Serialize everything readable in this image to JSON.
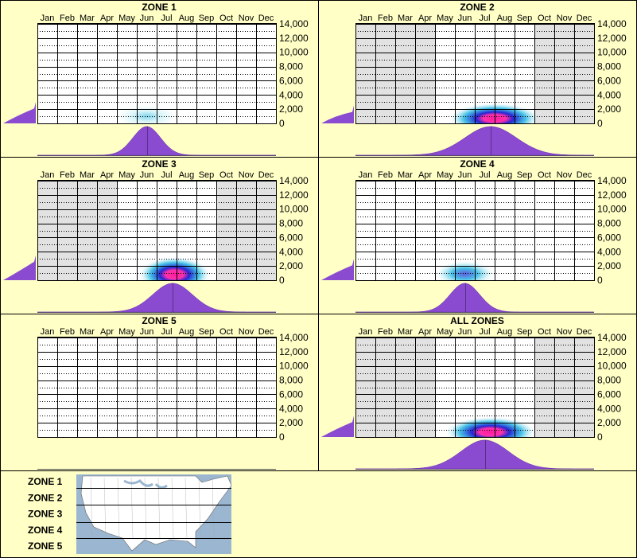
{
  "colors": {
    "background": "#ffffc6",
    "border": "#000000",
    "plot_bg": "#ffffff",
    "inactive_month": "#e2e2e2",
    "density_fill": "#8a4bd1",
    "heat_outer": "#bfeef5",
    "heat_mid": "#1ab4e0",
    "heat_inner": "#1a1ad0",
    "heat_core": "#ff1aa0"
  },
  "months": [
    "Jan",
    "Feb",
    "Mar",
    "Apr",
    "May",
    "Jun",
    "Jul",
    "Aug",
    "Sep",
    "Oct",
    "Nov",
    "Dec"
  ],
  "y_ticks": [
    "14,000",
    "12,000",
    "10,000",
    "8,000",
    "6,000",
    "4,000",
    "2,000",
    "0"
  ],
  "legend": {
    "zones": [
      "ZONE 1",
      "ZONE 2",
      "ZONE 3",
      "ZONE 4",
      "ZONE 5"
    ],
    "map_icon": "us-map-icon"
  },
  "chart_data": [
    {
      "type": "heatmap",
      "title": "ZONE 1",
      "x_categories_ref": "months",
      "ylim": [
        0,
        14000
      ],
      "active_months": [
        1,
        2,
        3,
        4,
        5,
        6,
        7,
        8,
        9,
        10,
        11,
        12
      ],
      "heat": {
        "center_month": 6.0,
        "center_elev": 1000,
        "spread_month": 0.9,
        "spread_elev": 900,
        "intensity": 0.25
      },
      "month_density": {
        "peak_month": 6.0,
        "width": 0.7,
        "height": 0.95
      },
      "elev_density": {
        "max": 0.45,
        "at_elev": 3000
      }
    },
    {
      "type": "heatmap",
      "title": "ZONE 2",
      "x_categories_ref": "months",
      "ylim": [
        0,
        14000
      ],
      "active_months": [
        5,
        6,
        7,
        8,
        9
      ],
      "heat": {
        "center_month": 7.5,
        "center_elev": 700,
        "spread_month": 1.4,
        "spread_elev": 1300,
        "intensity": 1.0
      },
      "month_density": {
        "peak_month": 7.3,
        "width": 1.3,
        "height": 0.95
      },
      "elev_density": {
        "max": 0.45,
        "at_elev": 2500
      }
    },
    {
      "type": "heatmap",
      "title": "ZONE 3",
      "x_categories_ref": "months",
      "ylim": [
        0,
        14000
      ],
      "active_months": [
        5,
        6,
        7,
        8,
        9
      ],
      "heat": {
        "center_month": 7.4,
        "center_elev": 800,
        "spread_month": 1.1,
        "spread_elev": 1500,
        "intensity": 1.0
      },
      "month_density": {
        "peak_month": 7.3,
        "width": 1.0,
        "height": 0.95
      },
      "elev_density": {
        "max": 0.45,
        "at_elev": 3500
      }
    },
    {
      "type": "heatmap",
      "title": "ZONE 4",
      "x_categories_ref": "months",
      "ylim": [
        0,
        14000
      ],
      "active_months": [
        1,
        2,
        3,
        4,
        5,
        6,
        7,
        8,
        9,
        10,
        11,
        12
      ],
      "heat": {
        "center_month": 6.0,
        "center_elev": 900,
        "spread_month": 0.9,
        "spread_elev": 1100,
        "intensity": 0.55
      },
      "month_density": {
        "peak_month": 6.0,
        "width": 0.75,
        "height": 0.95
      },
      "elev_density": {
        "max": 0.45,
        "at_elev": 3000
      }
    },
    {
      "type": "heatmap",
      "title": "ZONE 5",
      "x_categories_ref": "months",
      "ylim": [
        0,
        14000
      ],
      "active_months": [
        1,
        2,
        3,
        4,
        5,
        6,
        7,
        8,
        9,
        10,
        11,
        12
      ],
      "heat": null,
      "month_density": null,
      "elev_density": null
    },
    {
      "type": "heatmap",
      "title": "ALL ZONES",
      "x_categories_ref": "months",
      "ylim": [
        0,
        14000
      ],
      "active_months": [
        5,
        6,
        7,
        8,
        9
      ],
      "heat": {
        "center_month": 7.3,
        "center_elev": 700,
        "spread_month": 1.4,
        "spread_elev": 1300,
        "intensity": 1.0
      },
      "month_density": {
        "peak_month": 7.0,
        "width": 1.2,
        "height": 0.95
      },
      "elev_density": {
        "max": 0.45,
        "at_elev": 3000
      }
    }
  ]
}
